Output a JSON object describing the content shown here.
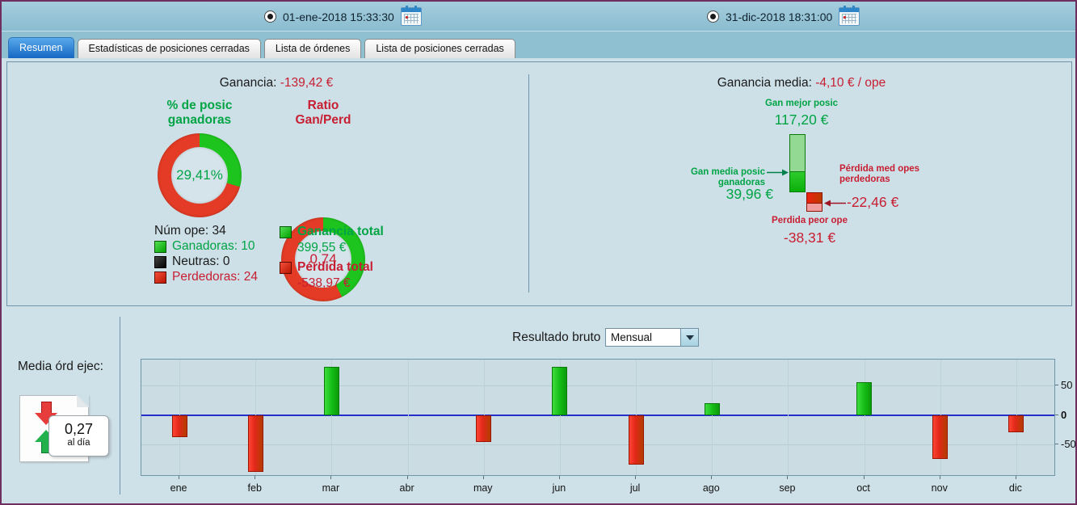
{
  "colors": {
    "donut_green": "#1ec41e",
    "donut_red": "#e33b25",
    "bar_green_grad": "linear-gradient(90deg,#3ddd3d,#14bb14 55%,#0b9a0b)",
    "bar_red_grad": "linear-gradient(90deg,#ff4433,#e02818 45%,#b43d00)",
    "bar_green_border": "#0a7a0a",
    "bar_red_border": "#991500",
    "zero_line": "#2330cc"
  },
  "toolbar": {
    "date_from": "01-ene-2018 15:33:30",
    "date_to": "31-dic-2018 18:31:00"
  },
  "tabs": [
    {
      "label": "Resumen",
      "active": true
    },
    {
      "label": "Estadísticas de posiciones cerradas",
      "active": false
    },
    {
      "label": "Lista de órdenes",
      "active": false
    },
    {
      "label": "Lista de posiciones cerradas",
      "active": false
    }
  ],
  "summary_left": {
    "title_label": "Ganancia:",
    "title_value": "-139,42 €",
    "donut_win": {
      "label_line1": "% de posic",
      "label_line2": "ganadoras",
      "value": "29,41%",
      "green_pct": 29.41
    },
    "donut_ratio": {
      "label_line1": "Ratio",
      "label_line2": "Gan/Perd",
      "value": "0,74",
      "green_pct": 42.6
    },
    "num_ope": "Núm ope: 34",
    "legend": [
      {
        "label": "Ganadoras: 10"
      },
      {
        "label": "Neutras: 0"
      },
      {
        "label": "Perdedoras: 24"
      }
    ],
    "totals": [
      {
        "label": "Ganancia total",
        "value": "399,55 €"
      },
      {
        "label": "Pérdida total",
        "value": "-538,97 €"
      }
    ]
  },
  "summary_right": {
    "title_label": "Ganancia media:",
    "title_value": "-4,10 € / ope",
    "best_label": "Gan mejor posic",
    "best_value": "117,20 €",
    "best_num": 117.2,
    "avg_win_label": "Gan media posic ganadoras",
    "avg_win_value": "39,96 €",
    "avg_win_num": 39.96,
    "avg_loss_label": "Pérdida med opes perdedoras",
    "avg_loss_value": "-22,46 €",
    "avg_loss_num": 22.46,
    "worst_label": "Perdida peor ope",
    "worst_value": "-38,31 €",
    "worst_num": 38.31
  },
  "bottom": {
    "chart_title": "Resultado bruto",
    "dropdown_value": "Mensual",
    "media_ord_label": "Media órd ejec:",
    "media_ord_value": "0,27",
    "media_ord_unit": "al día"
  },
  "chart_data": {
    "type": "bar",
    "title": "Resultado bruto (Mensual)",
    "categories": [
      "ene",
      "feb",
      "mar",
      "abr",
      "may",
      "jun",
      "jul",
      "ago",
      "sep",
      "oct",
      "nov",
      "dic"
    ],
    "values": [
      -38,
      -96,
      81,
      0,
      -46,
      82,
      -84,
      20,
      0,
      56,
      -74,
      -30
    ],
    "xlabel": "",
    "ylabel": "",
    "yticks": [
      50,
      0,
      -50
    ],
    "ylim": [
      -102,
      94
    ],
    "grid": true,
    "legend_position": "none"
  }
}
